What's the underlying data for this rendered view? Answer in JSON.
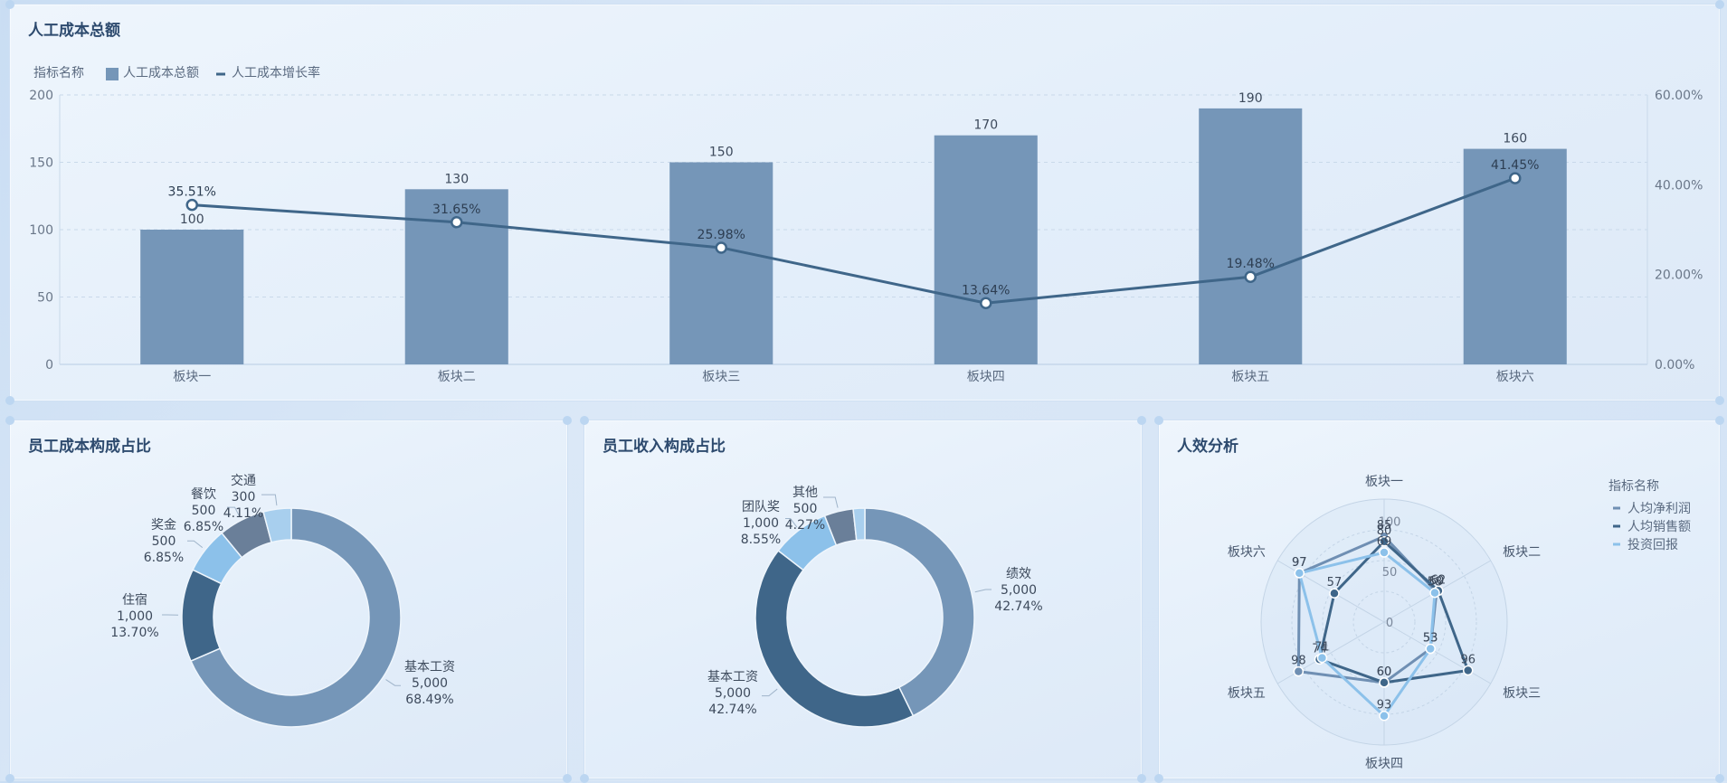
{
  "colors": {
    "bar": "#7596b8",
    "line": "#3f6689",
    "dark": "#3f6689",
    "light": "#8cc1ea",
    "slate": "#6a7f99",
    "text": "#445366"
  },
  "panels": {
    "top": {
      "title": "人工成本总额"
    },
    "cost": {
      "title": "员工成本构成占比"
    },
    "income": {
      "title": "员工收入构成占比"
    },
    "efficiency": {
      "title": "人效分析"
    }
  },
  "chart_data": [
    {
      "type": "bar",
      "title": "人工成本总额",
      "legend_title": "指标名称",
      "categories": [
        "板块一",
        "板块二",
        "板块三",
        "板块四",
        "板块五",
        "板块六"
      ],
      "series": [
        {
          "name": "人工成本总额",
          "kind": "bar",
          "values": [
            100,
            130,
            150,
            170,
            190,
            160
          ],
          "labels": [
            "100",
            "130",
            "150",
            "170",
            "190",
            "160"
          ]
        },
        {
          "name": "人工成本增长率",
          "kind": "line",
          "axis": "right",
          "values": [
            35.51,
            31.65,
            25.98,
            13.64,
            19.48,
            41.45
          ],
          "labels": [
            "35.51%",
            "31.65%",
            "25.98%",
            "13.64%",
            "19.48%",
            "41.45%"
          ]
        }
      ],
      "y_left": {
        "ticks": [
          "0",
          "50",
          "100",
          "150",
          "200"
        ],
        "lim": [
          0,
          200
        ]
      },
      "y_right": {
        "ticks": [
          "0.00%",
          "20.00%",
          "40.00%",
          "60.00%"
        ],
        "lim": [
          0,
          60
        ]
      }
    },
    {
      "type": "pie",
      "title": "员工成本构成占比",
      "slices": [
        {
          "name": "基本工资",
          "value": 5000,
          "value_label": "5,000",
          "pct": "68.49%",
          "color": "#7596b8"
        },
        {
          "name": "住宿",
          "value": 1000,
          "value_label": "1,000",
          "pct": "13.70%",
          "color": "#3f6689"
        },
        {
          "name": "奖金",
          "value": 500,
          "value_label": "500",
          "pct": "6.85%",
          "color": "#8cc1ea"
        },
        {
          "name": "餐饮",
          "value": 500,
          "value_label": "500",
          "pct": "6.85%",
          "color": "#6a7f99"
        },
        {
          "name": "交通",
          "value": 300,
          "value_label": "300",
          "pct": "4.11%",
          "color": "#a8cfee"
        }
      ]
    },
    {
      "type": "pie",
      "title": "员工收入构成占比",
      "slices": [
        {
          "name": "绩效",
          "value": 5000,
          "value_label": "5,000",
          "pct": "42.74%",
          "color": "#7596b8"
        },
        {
          "name": "基本工资",
          "value": 5000,
          "value_label": "5,000",
          "pct": "42.74%",
          "color": "#3f6689"
        },
        {
          "name": "团队奖",
          "value": 1000,
          "value_label": "1,000",
          "pct": "8.55%",
          "color": "#8cc1ea"
        },
        {
          "name": "其他",
          "value": 500,
          "value_label": "500",
          "pct": "4.27%",
          "color": "#6a7f99"
        },
        {
          "name": "",
          "value": 200,
          "value_label": "",
          "pct": "",
          "color": "#a8cfee"
        }
      ]
    },
    {
      "type": "radar",
      "title": "人效分析",
      "legend_title": "指标名称",
      "indicators": [
        "板块一",
        "板块二",
        "板块三",
        "板块四",
        "板块五",
        "板块六"
      ],
      "scale_labels": [
        "0",
        "50",
        "100"
      ],
      "max": 100,
      "series": [
        {
          "name": "人均净利润",
          "color": "#6f8fb3",
          "values": [
            85,
            60,
            53,
            60,
            98,
            97
          ]
        },
        {
          "name": "人均销售额",
          "color": "#3f6689",
          "values": [
            80,
            62,
            96,
            60,
            74,
            57
          ]
        },
        {
          "name": "投资回报",
          "color": "#8cc1ea",
          "values": [
            69,
            58,
            53,
            93,
            71,
            97
          ]
        }
      ]
    }
  ]
}
